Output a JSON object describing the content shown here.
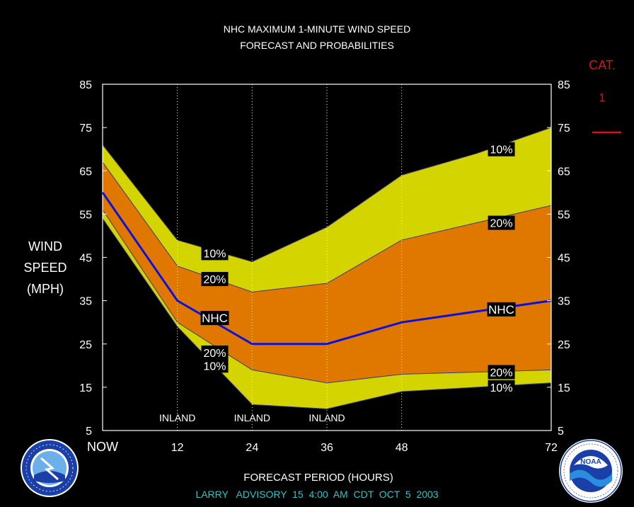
{
  "chart_data": {
    "type": "area",
    "title_lines": [
      "NHC MAXIMUM 1-MINUTE WIND SPEED",
      "FORECAST AND PROBABILITIES"
    ],
    "ylabel_lines": [
      "WIND",
      "SPEED",
      "(MPH)"
    ],
    "xlabel": "FORECAST PERIOD (HOURS)",
    "footer": "LARRY   ADVISORY  15  4:00  AM  CDT  OCT  5  2003",
    "ylim": [
      5,
      85
    ],
    "yticks": [
      5,
      15,
      25,
      35,
      45,
      55,
      65,
      75,
      85
    ],
    "xlim": [
      0,
      72
    ],
    "xticks": [
      {
        "x": 0,
        "label": "NOW"
      },
      {
        "x": 12,
        "label": "12"
      },
      {
        "x": 24,
        "label": "24"
      },
      {
        "x": 36,
        "label": "36"
      },
      {
        "x": 48,
        "label": "48"
      },
      {
        "x": 72,
        "label": "72"
      }
    ],
    "x": [
      0,
      12,
      24,
      36,
      48,
      60,
      72
    ],
    "bands": [
      {
        "name": "10%",
        "upper": [
          71,
          49,
          44,
          52,
          64,
          69,
          75
        ],
        "lower": [
          54,
          29,
          11,
          10,
          14,
          15,
          16
        ],
        "color": "#d4d400"
      },
      {
        "name": "20%",
        "upper": [
          67,
          43,
          37,
          39,
          49,
          53,
          57
        ],
        "lower": [
          56,
          30,
          19,
          16,
          18,
          18.5,
          19
        ],
        "color": "#e07800"
      }
    ],
    "nhc_series": {
      "name": "NHC",
      "values": [
        60,
        35,
        25,
        25,
        30,
        32.5,
        35
      ],
      "color": "#0a10e0"
    },
    "labels": [
      {
        "text": "10%",
        "x": 18,
        "y": 46
      },
      {
        "text": "20%",
        "x": 18,
        "y": 40
      },
      {
        "text": "NHC",
        "x": 18,
        "y": 31
      },
      {
        "text": "20%",
        "x": 18,
        "y": 23
      },
      {
        "text": "10%",
        "x": 18,
        "y": 20
      },
      {
        "text": "10%",
        "x": 64,
        "y": 70
      },
      {
        "text": "20%",
        "x": 64,
        "y": 53
      },
      {
        "text": "NHC",
        "x": 64,
        "y": 33
      },
      {
        "text": "20%",
        "x": 64,
        "y": 18.5
      },
      {
        "text": "10%",
        "x": 64,
        "y": 15
      }
    ],
    "inland_markers": [
      {
        "x": 12,
        "label": "INLAND"
      },
      {
        "x": 24,
        "label": "INLAND"
      },
      {
        "x": 36,
        "label": "INLAND"
      }
    ],
    "extra_gridlines": [
      48
    ],
    "category": {
      "title": "CAT.",
      "value": "1",
      "color": "#e01010"
    },
    "grid": false
  },
  "logos": {
    "left": {
      "icon": "nws-logo",
      "ring_text": "NATIONAL WEATHER SERVICE"
    },
    "right": {
      "icon": "noaa-logo",
      "center_text": "NOAA"
    }
  }
}
